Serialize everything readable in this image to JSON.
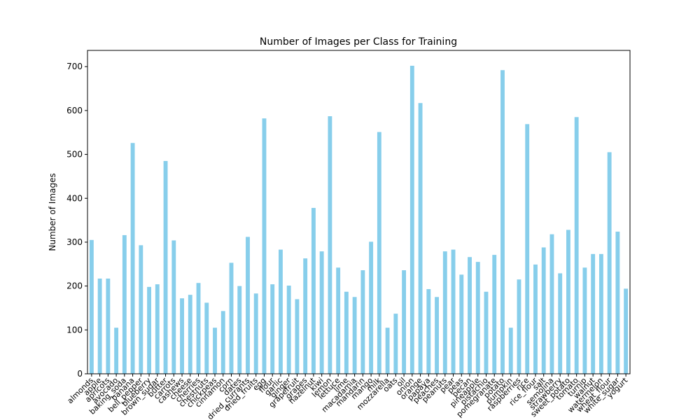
{
  "chart_data": {
    "type": "bar",
    "title": "Number of Images per Class for Training",
    "ylabel": "Number of Images",
    "color": "#87ceeb",
    "categories": [
      "almonds",
      "apple",
      "apricots",
      "avocado",
      "baking_soda",
      "banana",
      "bell_pepper",
      "blueberry",
      "brown_sugar",
      "butter",
      "carrots",
      "cashews",
      "cheese",
      "cherries",
      "chestnuts",
      "chickpeas",
      "cinnamon",
      "corn",
      "dates",
      "dried_currants",
      "dried_fruits",
      "egg",
      "flour",
      "garlic",
      "ginger",
      "grapefruit",
      "grapes",
      "hazelnut",
      "kiwi",
      "lemon",
      "lettuce",
      "lime",
      "macadamia",
      "mandarin",
      "mango",
      "milk",
      "mozzarella",
      "oats",
      "oil",
      "onion",
      "orange",
      "papaya",
      "peaches",
      "peanuts",
      "pear",
      "peas",
      "pecan",
      "pineapple",
      "pistachio",
      "pomegranate",
      "potato",
      "pumpkin",
      "raspberries",
      "rice",
      "rice_flour",
      "salt",
      "semolina",
      "strawberry",
      "sweet_potato",
      "tomato",
      "turnip",
      "walnut",
      "watermelon",
      "wheat_flour",
      "white_sugar",
      "yogurt"
    ],
    "values": [
      305,
      217,
      217,
      105,
      316,
      526,
      293,
      198,
      204,
      485,
      304,
      172,
      180,
      207,
      162,
      105,
      143,
      253,
      200,
      312,
      183,
      582,
      204,
      283,
      201,
      170,
      263,
      378,
      279,
      587,
      242,
      187,
      175,
      236,
      301,
      551,
      105,
      137,
      236,
      702,
      617,
      193,
      175,
      279,
      283,
      226,
      266,
      255,
      187,
      271,
      692,
      105,
      215,
      569,
      249,
      288,
      318,
      229,
      328,
      585,
      242,
      273,
      273,
      505,
      324,
      194
    ],
    "ylim": [
      0,
      737
    ],
    "yticks": [
      0,
      100,
      200,
      300,
      400,
      500,
      600,
      700
    ]
  }
}
